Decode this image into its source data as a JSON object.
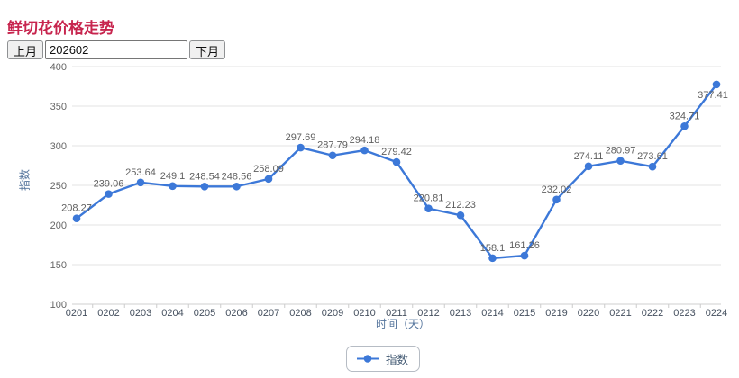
{
  "page": {
    "title": "鲜切花价格走势"
  },
  "controls": {
    "prev_month_label": "上月",
    "month_value": "202602",
    "next_month_label": "下月"
  },
  "chart_data": {
    "type": "line",
    "title": "鲜切花价格走势",
    "categories": [
      "0201",
      "0202",
      "0203",
      "0204",
      "0205",
      "0206",
      "0207",
      "0208",
      "0209",
      "0210",
      "0211",
      "0212",
      "0213",
      "0214",
      "0215",
      "0219",
      "0220",
      "0221",
      "0222",
      "0223",
      "0224"
    ],
    "series": [
      {
        "name": "指数",
        "color": "#3c78d8",
        "values": [
          208.27,
          239.06,
          253.64,
          249.1,
          248.54,
          248.56,
          258.09,
          297.69,
          287.79,
          294.18,
          279.42,
          220.81,
          212.23,
          158.1,
          161.26,
          232.02,
          274.11,
          280.97,
          273.61,
          324.71,
          377.41
        ]
      }
    ],
    "xlabel": "时间（天）",
    "ylabel": "指数",
    "ylim": [
      100,
      400
    ],
    "yticks": [
      100,
      150,
      200,
      250,
      300,
      350,
      400
    ],
    "grid": true,
    "legend_position": "bottom",
    "value_labels": true
  },
  "legend": {
    "items": [
      {
        "label": "指数",
        "color": "#3c78d8"
      }
    ]
  },
  "colors": {
    "accent_title": "#c7254e",
    "line": "#3c78d8",
    "grid": "#e3e3e3",
    "axis_line": "#cfcfcf",
    "axis_title": "#54749c"
  }
}
